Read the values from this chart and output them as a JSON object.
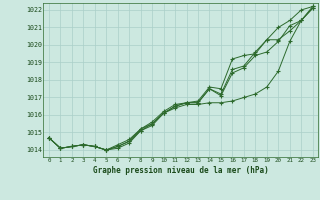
{
  "title": "Graphe pression niveau de la mer (hPa)",
  "background_color": "#cce8e0",
  "grid_color": "#aacfc8",
  "line_color": "#2d6a2d",
  "xlim": [
    -0.5,
    23.5
  ],
  "ylim": [
    1013.6,
    1022.4
  ],
  "yticks": [
    1014,
    1015,
    1016,
    1017,
    1018,
    1019,
    1020,
    1021,
    1022
  ],
  "xticks": [
    0,
    1,
    2,
    3,
    4,
    5,
    6,
    7,
    8,
    9,
    10,
    11,
    12,
    13,
    14,
    15,
    16,
    17,
    18,
    19,
    20,
    21,
    22,
    23
  ],
  "series": [
    [
      1014.7,
      1014.1,
      1014.2,
      1014.3,
      1014.2,
      1014.0,
      1014.1,
      1014.4,
      1015.1,
      1015.5,
      1016.1,
      1016.4,
      1016.6,
      1016.6,
      1016.7,
      1016.7,
      1016.8,
      1017.0,
      1017.2,
      1017.6,
      1018.5,
      1020.2,
      1021.4,
      1022.1
    ],
    [
      1014.7,
      1014.1,
      1014.2,
      1014.3,
      1014.2,
      1014.0,
      1014.2,
      1014.5,
      1015.1,
      1015.4,
      1016.1,
      1016.5,
      1016.7,
      1016.7,
      1017.5,
      1017.1,
      1018.4,
      1018.7,
      1019.4,
      1019.6,
      1020.2,
      1021.1,
      1021.4,
      1022.1
    ],
    [
      1014.7,
      1014.1,
      1014.2,
      1014.3,
      1014.2,
      1014.0,
      1014.2,
      1014.5,
      1015.2,
      1015.6,
      1016.2,
      1016.6,
      1016.7,
      1016.8,
      1017.6,
      1017.5,
      1019.2,
      1019.4,
      1019.5,
      1020.3,
      1021.0,
      1021.4,
      1022.0,
      1022.2
    ],
    [
      1014.7,
      1014.1,
      1014.2,
      1014.3,
      1014.2,
      1014.0,
      1014.3,
      1014.6,
      1015.2,
      1015.5,
      1016.1,
      1016.5,
      1016.7,
      1016.7,
      1017.5,
      1017.2,
      1018.6,
      1018.8,
      1019.6,
      1020.3,
      1020.3,
      1020.8,
      1021.4,
      1022.2
    ]
  ]
}
